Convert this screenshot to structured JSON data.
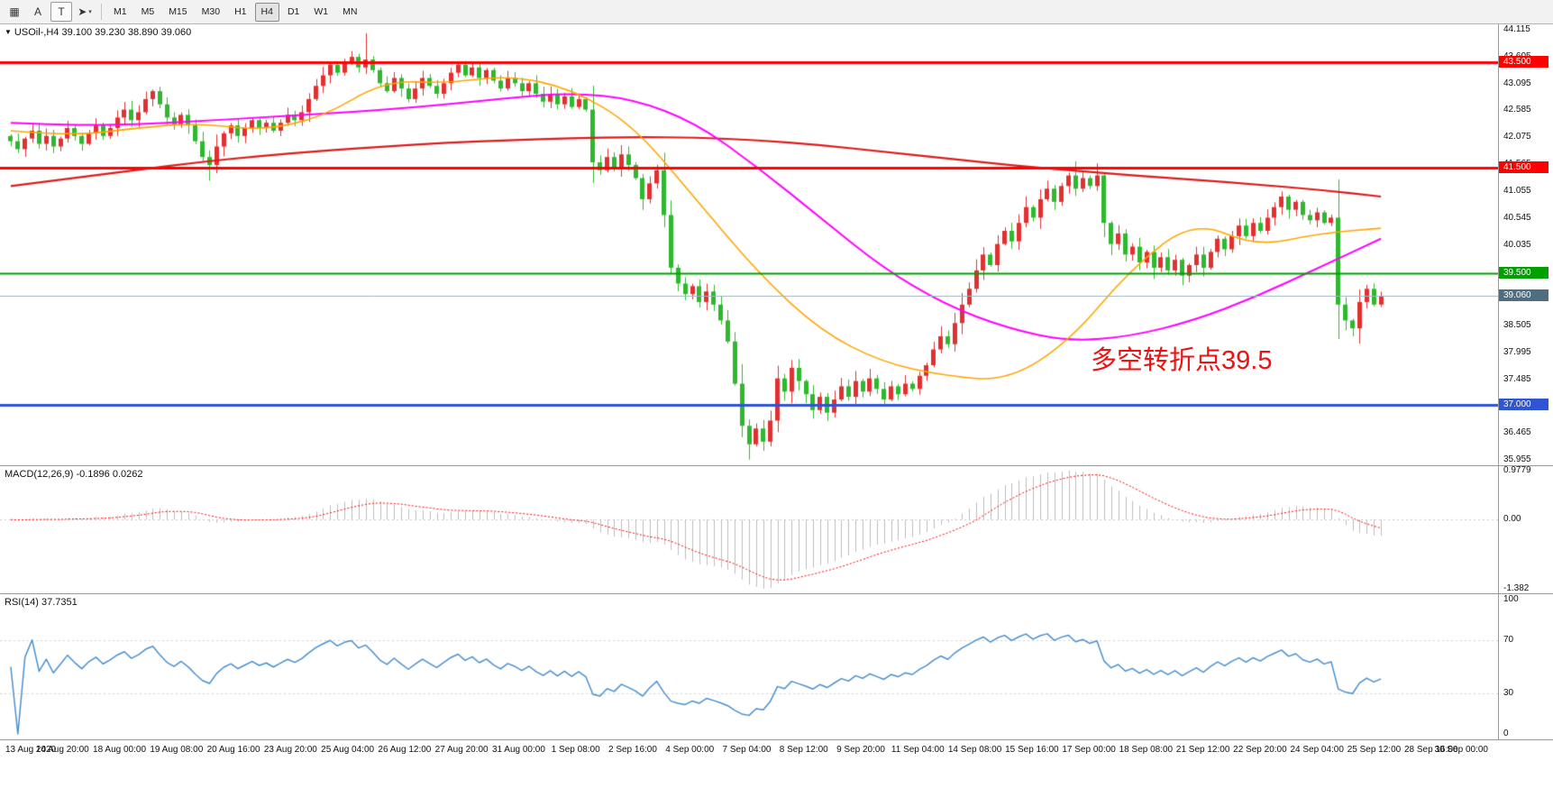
{
  "toolbar": {
    "tools": [
      {
        "name": "chart-window",
        "glyph": "▦"
      },
      {
        "name": "label-tool",
        "glyph": "A"
      },
      {
        "name": "text-tool",
        "glyph": "T",
        "boxed": true
      },
      {
        "name": "draw-tools",
        "glyph": "➤",
        "dropdown": true
      }
    ],
    "timeframes": [
      {
        "label": "M1"
      },
      {
        "label": "M5"
      },
      {
        "label": "M15"
      },
      {
        "label": "M30"
      },
      {
        "label": "H1"
      },
      {
        "label": "H4",
        "active": true
      },
      {
        "label": "D1"
      },
      {
        "label": "W1"
      },
      {
        "label": "MN"
      }
    ]
  },
  "main": {
    "symbol_marker": "▼",
    "symbol_info": "USOil-,H4 39.100 39.230 38.890 39.060",
    "annotation": "多空转折点39.5",
    "annotation_color": "#ee1111"
  },
  "macd": {
    "label": "MACD(12,26,9) -0.1896 0.0262"
  },
  "rsi": {
    "label": "RSI(14) 37.7351"
  },
  "chart_data": {
    "type": "candlestick_with_indicators",
    "symbol": "USOil-",
    "timeframe": "H4",
    "last_ohlc": {
      "open": 39.1,
      "high": 39.23,
      "low": 38.89,
      "close": 39.06
    },
    "price_scale": {
      "min": 35.955,
      "max": 44.115,
      "labels": [
        "44.115",
        "43.605",
        "43.095",
        "42.585",
        "42.075",
        "41.565",
        "41.055",
        "40.545",
        "40.035",
        "39.525",
        "39.015",
        "38.505",
        "37.995",
        "37.485",
        "36.975",
        "36.465",
        "35.955"
      ]
    },
    "levels": [
      {
        "price": 43.5,
        "label": "43.500",
        "color": "#ff0000",
        "width": 3
      },
      {
        "price": 41.5,
        "label": "41.500",
        "color": "#ff0000",
        "width": 3
      },
      {
        "price": 39.5,
        "label": "39.500",
        "color": "#00a000",
        "width": 2
      },
      {
        "price": 37.0,
        "label": "37.000",
        "color": "#2f54d4",
        "width": 3
      }
    ],
    "current_price": {
      "value": 39.06,
      "label": "39.060",
      "line_color": "#9cb6c0",
      "badge_color": "#4e6e80"
    },
    "candles": {
      "first_open": 42.1,
      "up_color": "#e03030",
      "down_color": "#2eb82e",
      "closes": [
        42.0,
        41.85,
        42.05,
        42.2,
        41.95,
        42.1,
        41.9,
        42.05,
        42.25,
        42.1,
        41.95,
        42.15,
        42.3,
        42.1,
        42.25,
        42.45,
        42.6,
        42.4,
        42.55,
        42.8,
        42.95,
        42.7,
        42.45,
        42.3,
        42.5,
        42.3,
        42.0,
        41.7,
        41.55,
        41.9,
        42.15,
        42.3,
        42.1,
        42.25,
        42.4,
        42.25,
        42.35,
        42.2,
        42.35,
        42.5,
        42.4,
        42.55,
        42.8,
        43.05,
        43.25,
        43.45,
        43.3,
        43.5,
        43.6,
        43.4,
        43.55,
        43.35,
        43.1,
        42.95,
        43.2,
        43.0,
        42.8,
        43.0,
        43.2,
        43.05,
        42.9,
        43.1,
        43.3,
        43.45,
        43.25,
        43.4,
        43.2,
        43.35,
        43.15,
        43.0,
        43.2,
        43.1,
        42.95,
        43.1,
        42.9,
        42.75,
        42.9,
        42.7,
        42.85,
        42.65,
        42.8,
        42.6,
        41.6,
        41.45,
        41.7,
        41.5,
        41.75,
        41.55,
        41.3,
        40.9,
        41.2,
        41.45,
        40.6,
        39.6,
        39.3,
        39.1,
        39.25,
        38.95,
        39.15,
        38.9,
        38.6,
        38.2,
        37.4,
        36.6,
        36.25,
        36.55,
        36.3,
        36.7,
        37.5,
        37.25,
        37.7,
        37.45,
        37.2,
        36.9,
        37.15,
        36.85,
        37.1,
        37.35,
        37.15,
        37.45,
        37.25,
        37.5,
        37.3,
        37.1,
        37.35,
        37.2,
        37.4,
        37.3,
        37.55,
        37.75,
        38.05,
        38.3,
        38.15,
        38.55,
        38.9,
        39.2,
        39.55,
        39.85,
        39.65,
        40.05,
        40.3,
        40.1,
        40.45,
        40.75,
        40.55,
        40.9,
        41.1,
        40.85,
        41.15,
        41.35,
        41.1,
        41.3,
        41.15,
        41.35,
        40.45,
        40.05,
        40.25,
        39.85,
        40.0,
        39.7,
        39.9,
        39.6,
        39.8,
        39.55,
        39.75,
        39.45,
        39.65,
        39.85,
        39.6,
        39.9,
        40.15,
        39.95,
        40.2,
        40.4,
        40.2,
        40.45,
        40.3,
        40.55,
        40.75,
        40.95,
        40.7,
        40.85,
        40.6,
        40.5,
        40.65,
        40.45,
        40.55,
        38.9,
        38.6,
        38.45,
        38.95,
        39.2,
        38.9,
        39.06
      ],
      "wick_overrides": {
        "28": {
          "low": 41.25
        },
        "50": {
          "high": 44.05
        },
        "104": {
          "low": 35.96
        },
        "150": {
          "high": 41.62
        },
        "153": {
          "high": 41.58
        },
        "189": {
          "low": 38.3
        }
      }
    },
    "moving_averages": [
      {
        "name": "ma-slow-red",
        "color": "#dd1c1c",
        "width": 2.2,
        "points": [
          41.15,
          41.3,
          41.45,
          41.6,
          41.72,
          41.82,
          41.9,
          41.97,
          42.02,
          42.06,
          42.08,
          42.07,
          42.02,
          41.93,
          41.8,
          41.68,
          41.55,
          41.45,
          41.35,
          41.27,
          41.18,
          41.08,
          40.95
        ]
      },
      {
        "name": "ma-medium-magenta",
        "color": "#ff00ff",
        "width": 2,
        "points": [
          42.35,
          42.3,
          42.32,
          42.38,
          42.45,
          42.52,
          42.6,
          42.7,
          42.82,
          42.92,
          42.8,
          42.35,
          41.5,
          40.55,
          39.6,
          38.9,
          38.45,
          38.2,
          38.3,
          38.6,
          39.05,
          39.6,
          40.15
        ]
      },
      {
        "name": "ma-fast-orange",
        "color": "#ffa500",
        "width": 1.6,
        "points": [
          42.2,
          42.1,
          42.25,
          42.35,
          42.2,
          42.45,
          43.15,
          43.1,
          43.25,
          43.0,
          42.3,
          40.9,
          39.5,
          38.4,
          37.8,
          37.55,
          37.45,
          38.2,
          39.6,
          40.5,
          40.0,
          40.25,
          40.35
        ]
      }
    ],
    "macd": {
      "fast": 12,
      "slow": 26,
      "signal": 9,
      "value": -0.1896,
      "signal_value": 0.0262,
      "max": 0.9779,
      "min": -1.382,
      "scale_labels": [
        "0.9779",
        "0.00",
        "-1.382"
      ],
      "hist_color": "#bdbdbd",
      "signal_color": "#ff0000"
    },
    "rsi": {
      "period": 14,
      "value": 37.7351,
      "scale_labels": [
        "100",
        "70",
        "30",
        "0"
      ],
      "levels": [
        70,
        30
      ],
      "line_color": "#4a8fce"
    },
    "time_labels": [
      "13 Aug 2020",
      "14 Aug 20:00",
      "18 Aug 00:00",
      "19 Aug 08:00",
      "20 Aug 16:00",
      "23 Aug 20:00",
      "25 Aug 04:00",
      "26 Aug 12:00",
      "27 Aug 20:00",
      "31 Aug 00:00",
      "1 Sep 08:00",
      "2 Sep 16:00",
      "4 Sep 00:00",
      "7 Sep 04:00",
      "8 Sep 12:00",
      "9 Sep 20:00",
      "11 Sep 04:00",
      "14 Sep 08:00",
      "15 Sep 16:00",
      "17 Sep 00:00",
      "18 Sep 08:00",
      "21 Sep 12:00",
      "22 Sep 20:00",
      "24 Sep 04:00",
      "25 Sep 12:00",
      "28 Sep 16:00",
      "30 Sep 00:00"
    ]
  }
}
